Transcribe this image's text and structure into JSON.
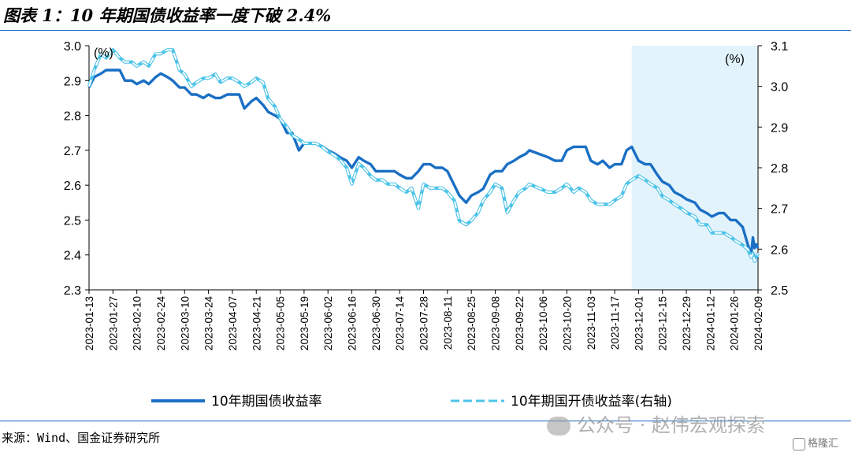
{
  "title": "图表 1：10 年期国债收益率一度下破 2.4%",
  "source": "来源：Wind、国金证券研究所",
  "watermark": "公众号 · 赵伟宏观探索",
  "corner_logo": "格隆汇",
  "colors": {
    "series1": "#1a6fc4",
    "series2": "#4cc3e8",
    "shade": "#e3f3fb",
    "rule": "#1565c0"
  },
  "chart_data": {
    "type": "line",
    "left_unit": "(%)",
    "right_unit": "(%)",
    "ylim_left": [
      2.3,
      3.0
    ],
    "ylim_right": [
      2.5,
      3.1
    ],
    "yticks_left": [
      "3.0",
      "2.9",
      "2.8",
      "2.7",
      "2.6",
      "2.5",
      "2.4",
      "2.3"
    ],
    "yticks_right": [
      "3.1",
      "3.0",
      "2.9",
      "2.8",
      "2.7",
      "2.6",
      "2.5"
    ],
    "x_ticks": [
      "2023-01-13",
      "2023-01-27",
      "2023-02-10",
      "2023-02-24",
      "2023-03-10",
      "2023-03-24",
      "2023-04-07",
      "2023-04-21",
      "2023-05-05",
      "2023-05-19",
      "2023-06-02",
      "2023-06-16",
      "2023-06-30",
      "2023-07-14",
      "2023-07-28",
      "2023-08-11",
      "2023-08-25",
      "2023-09-08",
      "2023-09-22",
      "2023-10-06",
      "2023-10-20",
      "2023-11-03",
      "2023-11-17",
      "2023-12-01",
      "2023-12-15",
      "2023-12-29",
      "2024-01-12",
      "2024-01-26",
      "2024-02-09"
    ],
    "x_range": [
      "2023-01-13",
      "2024-02-09"
    ],
    "shaded_range": [
      "2023-11-27",
      "2024-02-09"
    ],
    "series": [
      {
        "name": "10年期国债收益率",
        "axis": "left",
        "style": "solid",
        "points": [
          [
            "2023-01-13",
            2.88
          ],
          [
            "2023-01-16",
            2.91
          ],
          [
            "2023-01-20",
            2.92
          ],
          [
            "2023-01-23",
            2.93
          ],
          [
            "2023-01-27",
            2.93
          ],
          [
            "2023-01-31",
            2.93
          ],
          [
            "2023-02-03",
            2.9
          ],
          [
            "2023-02-07",
            2.9
          ],
          [
            "2023-02-10",
            2.89
          ],
          [
            "2023-02-14",
            2.9
          ],
          [
            "2023-02-17",
            2.89
          ],
          [
            "2023-02-21",
            2.91
          ],
          [
            "2023-02-24",
            2.92
          ],
          [
            "2023-02-28",
            2.91
          ],
          [
            "2023-03-03",
            2.9
          ],
          [
            "2023-03-07",
            2.88
          ],
          [
            "2023-03-10",
            2.88
          ],
          [
            "2023-03-14",
            2.86
          ],
          [
            "2023-03-17",
            2.86
          ],
          [
            "2023-03-21",
            2.85
          ],
          [
            "2023-03-24",
            2.86
          ],
          [
            "2023-03-28",
            2.85
          ],
          [
            "2023-03-31",
            2.85
          ],
          [
            "2023-04-04",
            2.86
          ],
          [
            "2023-04-07",
            2.86
          ],
          [
            "2023-04-11",
            2.86
          ],
          [
            "2023-04-14",
            2.82
          ],
          [
            "2023-04-18",
            2.84
          ],
          [
            "2023-04-21",
            2.85
          ],
          [
            "2023-04-25",
            2.83
          ],
          [
            "2023-04-28",
            2.81
          ],
          [
            "2023-05-02",
            2.8
          ],
          [
            "2023-05-05",
            2.79
          ],
          [
            "2023-05-09",
            2.75
          ],
          [
            "2023-05-12",
            2.75
          ],
          [
            "2023-05-16",
            2.7
          ],
          [
            "2023-05-19",
            2.72
          ],
          [
            "2023-05-23",
            2.72
          ],
          [
            "2023-05-26",
            2.72
          ],
          [
            "2023-05-30",
            2.71
          ],
          [
            "2023-06-02",
            2.7
          ],
          [
            "2023-06-06",
            2.69
          ],
          [
            "2023-06-09",
            2.68
          ],
          [
            "2023-06-13",
            2.67
          ],
          [
            "2023-06-16",
            2.65
          ],
          [
            "2023-06-20",
            2.68
          ],
          [
            "2023-06-23",
            2.67
          ],
          [
            "2023-06-27",
            2.66
          ],
          [
            "2023-06-30",
            2.64
          ],
          [
            "2023-07-04",
            2.64
          ],
          [
            "2023-07-07",
            2.64
          ],
          [
            "2023-07-11",
            2.64
          ],
          [
            "2023-07-14",
            2.63
          ],
          [
            "2023-07-18",
            2.62
          ],
          [
            "2023-07-21",
            2.62
          ],
          [
            "2023-07-25",
            2.64
          ],
          [
            "2023-07-28",
            2.66
          ],
          [
            "2023-08-01",
            2.66
          ],
          [
            "2023-08-04",
            2.65
          ],
          [
            "2023-08-08",
            2.65
          ],
          [
            "2023-08-11",
            2.64
          ],
          [
            "2023-08-15",
            2.6
          ],
          [
            "2023-08-18",
            2.57
          ],
          [
            "2023-08-22",
            2.55
          ],
          [
            "2023-08-25",
            2.57
          ],
          [
            "2023-08-29",
            2.58
          ],
          [
            "2023-09-01",
            2.59
          ],
          [
            "2023-09-05",
            2.63
          ],
          [
            "2023-09-08",
            2.64
          ],
          [
            "2023-09-12",
            2.64
          ],
          [
            "2023-09-15",
            2.66
          ],
          [
            "2023-09-19",
            2.67
          ],
          [
            "2023-09-22",
            2.68
          ],
          [
            "2023-09-26",
            2.69
          ],
          [
            "2023-09-28",
            2.7
          ],
          [
            "2023-10-09",
            2.68
          ],
          [
            "2023-10-13",
            2.67
          ],
          [
            "2023-10-17",
            2.67
          ],
          [
            "2023-10-20",
            2.7
          ],
          [
            "2023-10-24",
            2.71
          ],
          [
            "2023-10-27",
            2.71
          ],
          [
            "2023-10-31",
            2.71
          ],
          [
            "2023-11-03",
            2.67
          ],
          [
            "2023-11-07",
            2.66
          ],
          [
            "2023-11-10",
            2.67
          ],
          [
            "2023-11-14",
            2.65
          ],
          [
            "2023-11-17",
            2.66
          ],
          [
            "2023-11-21",
            2.66
          ],
          [
            "2023-11-24",
            2.7
          ],
          [
            "2023-11-27",
            2.71
          ],
          [
            "2023-12-01",
            2.67
          ],
          [
            "2023-12-05",
            2.66
          ],
          [
            "2023-12-08",
            2.66
          ],
          [
            "2023-12-12",
            2.63
          ],
          [
            "2023-12-15",
            2.61
          ],
          [
            "2023-12-19",
            2.6
          ],
          [
            "2023-12-22",
            2.58
          ],
          [
            "2023-12-26",
            2.57
          ],
          [
            "2023-12-29",
            2.56
          ],
          [
            "2024-01-03",
            2.55
          ],
          [
            "2024-01-06",
            2.53
          ],
          [
            "2024-01-10",
            2.52
          ],
          [
            "2024-01-13",
            2.51
          ],
          [
            "2024-01-17",
            2.52
          ],
          [
            "2024-01-20",
            2.52
          ],
          [
            "2024-01-24",
            2.5
          ],
          [
            "2024-01-27",
            2.5
          ],
          [
            "2024-01-31",
            2.48
          ],
          [
            "2024-02-03",
            2.43
          ],
          [
            "2024-02-05",
            2.4
          ],
          [
            "2024-02-06",
            2.45
          ],
          [
            "2024-02-07",
            2.42
          ],
          [
            "2024-02-08",
            2.43
          ],
          [
            "2024-02-09",
            2.42
          ]
        ]
      },
      {
        "name": "10年期国开债收益率(右轴)",
        "axis": "right",
        "style": "dashed",
        "points": [
          [
            "2023-01-13",
            3.0
          ],
          [
            "2023-01-16",
            3.04
          ],
          [
            "2023-01-20",
            3.08
          ],
          [
            "2023-01-23",
            3.07
          ],
          [
            "2023-01-27",
            3.09
          ],
          [
            "2023-01-31",
            3.07
          ],
          [
            "2023-02-03",
            3.06
          ],
          [
            "2023-02-07",
            3.06
          ],
          [
            "2023-02-10",
            3.05
          ],
          [
            "2023-02-14",
            3.06
          ],
          [
            "2023-02-17",
            3.05
          ],
          [
            "2023-02-21",
            3.08
          ],
          [
            "2023-02-24",
            3.08
          ],
          [
            "2023-02-28",
            3.09
          ],
          [
            "2023-03-03",
            3.09
          ],
          [
            "2023-03-07",
            3.04
          ],
          [
            "2023-03-10",
            3.03
          ],
          [
            "2023-03-14",
            3.0
          ],
          [
            "2023-03-17",
            3.01
          ],
          [
            "2023-03-21",
            3.02
          ],
          [
            "2023-03-24",
            3.02
          ],
          [
            "2023-03-28",
            3.03
          ],
          [
            "2023-03-31",
            3.01
          ],
          [
            "2023-04-04",
            3.02
          ],
          [
            "2023-04-07",
            3.02
          ],
          [
            "2023-04-11",
            3.01
          ],
          [
            "2023-04-14",
            3.0
          ],
          [
            "2023-04-18",
            3.01
          ],
          [
            "2023-04-21",
            3.02
          ],
          [
            "2023-04-25",
            3.01
          ],
          [
            "2023-04-28",
            2.97
          ],
          [
            "2023-05-02",
            2.95
          ],
          [
            "2023-05-05",
            2.92
          ],
          [
            "2023-05-09",
            2.9
          ],
          [
            "2023-05-12",
            2.88
          ],
          [
            "2023-05-16",
            2.87
          ],
          [
            "2023-05-19",
            2.86
          ],
          [
            "2023-05-23",
            2.86
          ],
          [
            "2023-05-26",
            2.86
          ],
          [
            "2023-05-30",
            2.85
          ],
          [
            "2023-06-02",
            2.84
          ],
          [
            "2023-06-06",
            2.83
          ],
          [
            "2023-06-09",
            2.82
          ],
          [
            "2023-06-13",
            2.8
          ],
          [
            "2023-06-16",
            2.76
          ],
          [
            "2023-06-20",
            2.81
          ],
          [
            "2023-06-23",
            2.8
          ],
          [
            "2023-06-27",
            2.78
          ],
          [
            "2023-06-30",
            2.77
          ],
          [
            "2023-07-04",
            2.77
          ],
          [
            "2023-07-07",
            2.76
          ],
          [
            "2023-07-11",
            2.76
          ],
          [
            "2023-07-14",
            2.75
          ],
          [
            "2023-07-18",
            2.74
          ],
          [
            "2023-07-21",
            2.75
          ],
          [
            "2023-07-25",
            2.7
          ],
          [
            "2023-07-28",
            2.76
          ],
          [
            "2023-08-01",
            2.75
          ],
          [
            "2023-08-04",
            2.75
          ],
          [
            "2023-08-08",
            2.75
          ],
          [
            "2023-08-11",
            2.74
          ],
          [
            "2023-08-15",
            2.72
          ],
          [
            "2023-08-18",
            2.67
          ],
          [
            "2023-08-22",
            2.66
          ],
          [
            "2023-08-25",
            2.67
          ],
          [
            "2023-08-29",
            2.69
          ],
          [
            "2023-09-01",
            2.72
          ],
          [
            "2023-09-05",
            2.74
          ],
          [
            "2023-09-08",
            2.76
          ],
          [
            "2023-09-12",
            2.75
          ],
          [
            "2023-09-15",
            2.69
          ],
          [
            "2023-09-19",
            2.72
          ],
          [
            "2023-09-22",
            2.74
          ],
          [
            "2023-09-26",
            2.75
          ],
          [
            "2023-09-28",
            2.76
          ],
          [
            "2023-10-09",
            2.74
          ],
          [
            "2023-10-13",
            2.74
          ],
          [
            "2023-10-17",
            2.75
          ],
          [
            "2023-10-20",
            2.76
          ],
          [
            "2023-10-24",
            2.74
          ],
          [
            "2023-10-27",
            2.75
          ],
          [
            "2023-10-31",
            2.74
          ],
          [
            "2023-11-03",
            2.72
          ],
          [
            "2023-11-07",
            2.71
          ],
          [
            "2023-11-10",
            2.71
          ],
          [
            "2023-11-14",
            2.71
          ],
          [
            "2023-11-17",
            2.72
          ],
          [
            "2023-11-21",
            2.73
          ],
          [
            "2023-11-24",
            2.76
          ],
          [
            "2023-11-27",
            2.77
          ],
          [
            "2023-12-01",
            2.78
          ],
          [
            "2023-12-05",
            2.77
          ],
          [
            "2023-12-08",
            2.76
          ],
          [
            "2023-12-12",
            2.75
          ],
          [
            "2023-12-15",
            2.73
          ],
          [
            "2023-12-19",
            2.72
          ],
          [
            "2023-12-22",
            2.71
          ],
          [
            "2023-12-26",
            2.7
          ],
          [
            "2023-12-29",
            2.69
          ],
          [
            "2024-01-03",
            2.68
          ],
          [
            "2024-01-06",
            2.66
          ],
          [
            "2024-01-10",
            2.66
          ],
          [
            "2024-01-13",
            2.64
          ],
          [
            "2024-01-17",
            2.64
          ],
          [
            "2024-01-20",
            2.64
          ],
          [
            "2024-01-24",
            2.63
          ],
          [
            "2024-01-27",
            2.62
          ],
          [
            "2024-01-31",
            2.61
          ],
          [
            "2024-02-03",
            2.6
          ],
          [
            "2024-02-05",
            2.58
          ],
          [
            "2024-02-06",
            2.59
          ],
          [
            "2024-02-07",
            2.57
          ],
          [
            "2024-02-08",
            2.58
          ],
          [
            "2024-02-09",
            2.59
          ]
        ]
      }
    ],
    "grid": false,
    "legend": "bottom"
  }
}
